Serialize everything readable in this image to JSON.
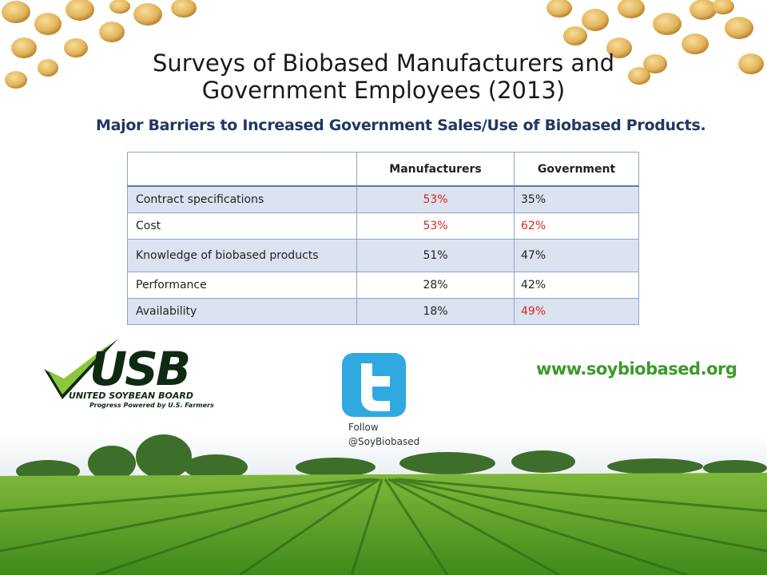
{
  "title": [
    "Surveys of Biobased Manufacturers and",
    "Government Employees (2013)"
  ],
  "subtitle": "Major Barriers to Increased Government Sales/Use of Biobased Products.",
  "table": {
    "header": [
      "",
      "Manufacturers",
      "Government"
    ],
    "rows": [
      [
        "Contract specifications",
        {
          "text": "53%",
          "color": "#d9261c"
        },
        {
          "text": "35%"
        }
      ],
      [
        "Cost",
        {
          "text": "53%",
          "color": "#d9261c"
        },
        {
          "text": "62%",
          "color": "#d9261c"
        }
      ],
      [
        "Knowledge of biobased products",
        {
          "text": "51%"
        },
        {
          "text": "47%"
        }
      ],
      [
        "Performance",
        {
          "text": "28%"
        },
        {
          "text": "42%"
        }
      ],
      [
        "Availability",
        {
          "text": "18%"
        },
        {
          "text": "49%",
          "color": "#d9261c"
        }
      ]
    ]
  },
  "logo": {
    "name": "USB",
    "full_name": "UNITED SOYBEAN BOARD",
    "tagline": "Progress Powered by U.S. Farmers"
  },
  "twitter": {
    "follow": "Follow",
    "handle": "@SoyBiobased"
  },
  "url": "www.soybiobased.org"
}
